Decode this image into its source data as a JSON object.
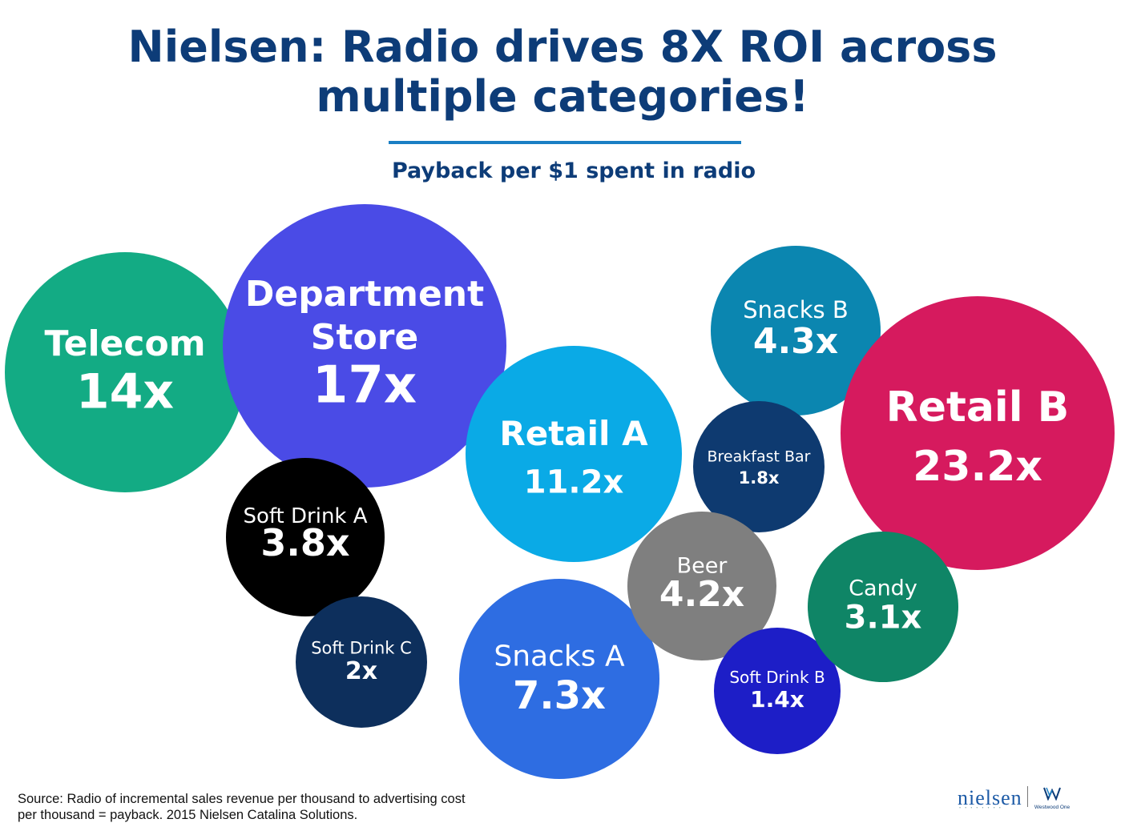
{
  "chart_data": {
    "type": "bubble",
    "title": "Nielsen: Radio drives 8X ROI across multiple categories!",
    "subtitle": "Payback per $1 spent in radio",
    "bubbles": [
      {
        "name": "Telecom",
        "label": "14x",
        "value": 14,
        "color": "#13ab84"
      },
      {
        "name": "Department Store",
        "label": "17x",
        "value": 17,
        "color": "#4a4be6"
      },
      {
        "name": "Soft Drink A",
        "label": "3.8x",
        "value": 3.8,
        "color": "#000000"
      },
      {
        "name": "Soft Drink C",
        "label": "2x",
        "value": 2,
        "color": "#0d2f5c"
      },
      {
        "name": "Retail A",
        "label": "11.2x",
        "value": 11.2,
        "color": "#0aaae6"
      },
      {
        "name": "Snacks A",
        "label": "7.3x",
        "value": 7.3,
        "color": "#2e6de2"
      },
      {
        "name": "Snacks B",
        "label": "4.3x",
        "value": 4.3,
        "color": "#0b86b0"
      },
      {
        "name": "Breakfast Bar",
        "label": "1.8x",
        "value": 1.8,
        "color": "#0e3a70"
      },
      {
        "name": "Beer",
        "label": "4.2x",
        "value": 4.2,
        "color": "#7f7f7f"
      },
      {
        "name": "Soft Drink B",
        "label": "1.4x",
        "value": 1.4,
        "color": "#1d1ec7"
      },
      {
        "name": "Retail B",
        "label": "23.2x",
        "value": 23.2,
        "color": "#d61a5e"
      },
      {
        "name": "Candy",
        "label": "3.1x",
        "value": 3.1,
        "color": "#0f8566"
      }
    ]
  },
  "title_line1": "Nielsen: Radio drives 8X ROI across",
  "title_line2": "multiple categories!",
  "source": {
    "line1": "Source: Radio of incremental sales revenue per thousand to advertising cost",
    "line2": "per thousand = payback. 2015 Nielsen Catalina Solutions."
  },
  "logos": {
    "nielsen": "nielsen",
    "westwood": "Westwood One"
  }
}
